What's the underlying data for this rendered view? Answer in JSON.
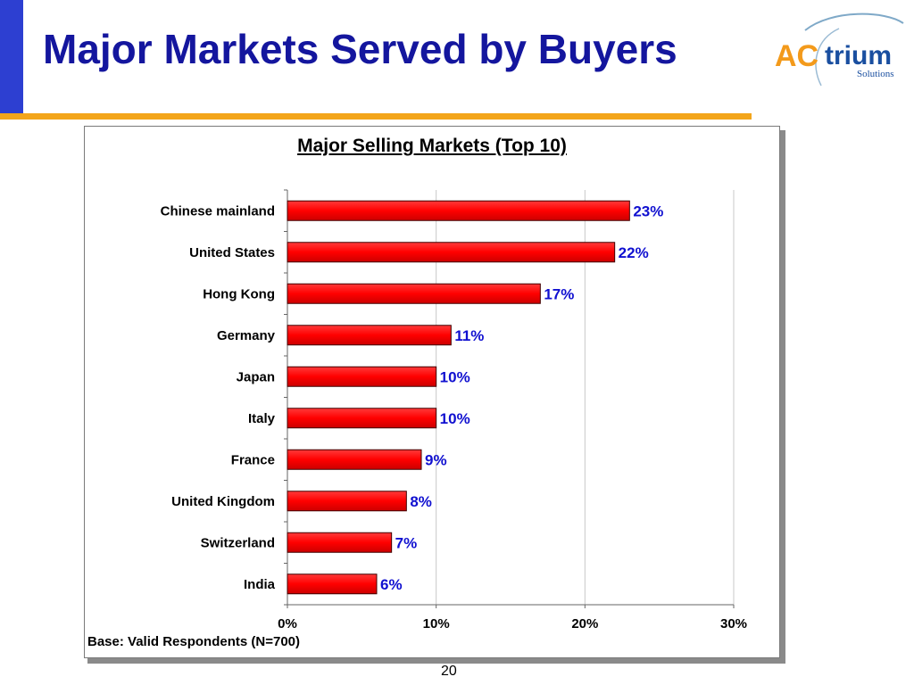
{
  "slide": {
    "title": "Major Markets Served by Buyers",
    "page_number": "20",
    "colors": {
      "title": "#14169e",
      "strip": "#2d3fd1",
      "rule": "#f3a51b"
    }
  },
  "logo": {
    "text_a": "AC",
    "text_b": "trium",
    "subtitle": "Solutions",
    "colors": {
      "ac": "#f39a1b",
      "trium": "#1a4fa0"
    }
  },
  "chart_data": {
    "type": "bar",
    "orientation": "horizontal",
    "title": "Major Selling Markets (Top 10)",
    "categories": [
      "Chinese mainland",
      "United States",
      "Hong Kong",
      "Germany",
      "Japan",
      "Italy",
      "France",
      "United Kingdom",
      "Switzerland",
      "India"
    ],
    "values": [
      23,
      22,
      17,
      11,
      10,
      10,
      9,
      8,
      7,
      6
    ],
    "value_labels": [
      "23%",
      "22%",
      "17%",
      "11%",
      "10%",
      "10%",
      "9%",
      "8%",
      "7%",
      "6%"
    ],
    "xlim": [
      0,
      30
    ],
    "xticks": [
      0,
      10,
      20,
      30
    ],
    "xtick_labels": [
      "0%",
      "10%",
      "20%",
      "30%"
    ],
    "gridlines": "vertical",
    "bar_color": "#ff0000",
    "label_color": "#1010d0",
    "note": "Base: Valid Respondents (N=700)"
  }
}
